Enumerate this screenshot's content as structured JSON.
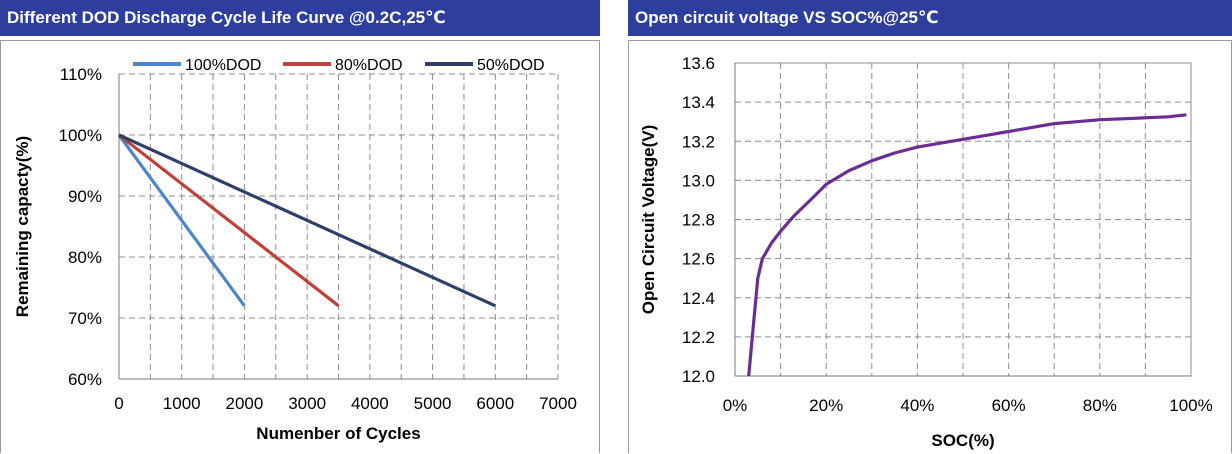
{
  "charts": {
    "left": {
      "header_title": "Different DOD Discharge Cycle Life Curve @0.2C,25℃",
      "chart_data": {
        "type": "line",
        "xlabel": "Numenber of Cycles",
        "ylabel": "Remaining capacty(%)",
        "xlim": [
          0,
          7000
        ],
        "ylim": [
          60,
          110
        ],
        "x_ticks": [
          0,
          1000,
          2000,
          3000,
          4000,
          5000,
          6000,
          7000
        ],
        "x_tick_labels": [
          "0",
          "1000",
          "2000",
          "3000",
          "4000",
          "5000",
          "6000",
          "7000"
        ],
        "y_ticks": [
          60,
          70,
          80,
          90,
          100,
          110
        ],
        "y_tick_labels": [
          "60%",
          "70%",
          "80%",
          "90%",
          "100%",
          "110%"
        ],
        "grid": "dashed",
        "legend_position": "top",
        "series": [
          {
            "name": "100%DOD",
            "color": "#4a86c8",
            "x": [
              0,
              2000
            ],
            "y": [
              100,
              72
            ]
          },
          {
            "name": "80%DOD",
            "color": "#c0403c",
            "x": [
              0,
              3500
            ],
            "y": [
              100,
              72
            ]
          },
          {
            "name": "50%DOD",
            "color": "#2f3f6a",
            "x": [
              0,
              6000
            ],
            "y": [
              100,
              72
            ]
          }
        ]
      }
    },
    "right": {
      "header_title": "Open circuit voltage VS SOC%@25℃",
      "chart_data": {
        "type": "line",
        "xlabel": "SOC(%)",
        "ylabel": "Open Circuit Voltage(V)",
        "xlim": [
          0,
          100
        ],
        "ylim": [
          12.0,
          13.6
        ],
        "x_ticks": [
          0,
          20,
          40,
          60,
          80,
          100
        ],
        "x_tick_labels": [
          "0%",
          "20%",
          "40%",
          "60%",
          "80%",
          "100%"
        ],
        "y_ticks": [
          12.0,
          12.2,
          12.4,
          12.6,
          12.8,
          13.0,
          13.2,
          13.4,
          13.6
        ],
        "y_tick_labels": [
          "12.0",
          "12.2",
          "12.4",
          "12.6",
          "12.8",
          "13.0",
          "13.2",
          "13.4",
          "13.6"
        ],
        "grid": "dashed",
        "series": [
          {
            "color": "#6a2d94",
            "x": [
              3,
              4,
              5,
              6,
              8,
              10,
              13,
              17,
              20,
              25,
              30,
              35,
              40,
              45,
              50,
              55,
              60,
              65,
              70,
              75,
              80,
              85,
              90,
              95,
              99
            ],
            "y": [
              12.0,
              12.25,
              12.5,
              12.6,
              12.68,
              12.74,
              12.82,
              12.91,
              12.98,
              13.05,
              13.1,
              13.14,
              13.17,
              13.19,
              13.21,
              13.23,
              13.25,
              13.27,
              13.29,
              13.3,
              13.31,
              13.315,
              13.32,
              13.325,
              13.335
            ]
          }
        ]
      }
    }
  }
}
